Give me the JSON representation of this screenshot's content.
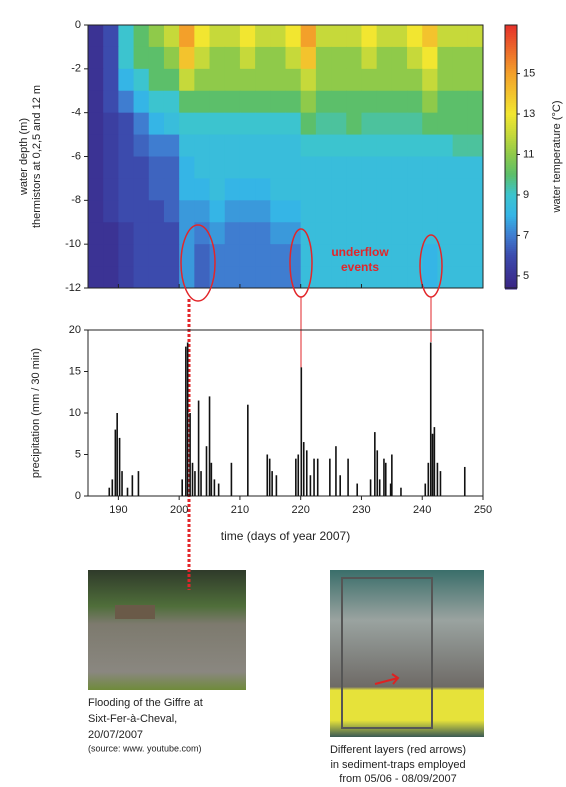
{
  "chart_data": [
    {
      "type": "heatmap",
      "ylabel": [
        "water depth (m)",
        "thermistors at 0,2,5 and 12 m"
      ],
      "colorbar_label": "water temperature (°C)",
      "annotation": [
        "underflow",
        "events"
      ],
      "x": [
        186.25,
        188.75,
        191.25,
        193.75,
        196.25,
        198.75,
        201.25,
        203.75,
        206.25,
        208.75,
        211.25,
        213.75,
        216.25,
        218.75,
        221.25,
        223.75,
        226.25,
        228.75,
        231.25,
        233.75,
        236.25,
        238.75,
        241.25,
        243.75,
        246.25,
        248.75
      ],
      "y": [
        -0.5,
        -1.5,
        -2.5,
        -3.5,
        -4.5,
        -5.5,
        -6.5,
        -7.5,
        -8.5,
        -9.5,
        -10.5,
        -11.5
      ],
      "values": [
        [
          5,
          6,
          9,
          10,
          11,
          12,
          15,
          13,
          12,
          12,
          13,
          12,
          12,
          13,
          15,
          12,
          12,
          12,
          13,
          12,
          12,
          13,
          14,
          12,
          12,
          12
        ],
        [
          5,
          6,
          9,
          10,
          10,
          11,
          14,
          12,
          11,
          11,
          12,
          11,
          11,
          12,
          14,
          11,
          11,
          11,
          12,
          11,
          11,
          12,
          13,
          11,
          11,
          11
        ],
        [
          5,
          6,
          8,
          9,
          10,
          10,
          12,
          11,
          11,
          11,
          11,
          11,
          11,
          11,
          12,
          11,
          11,
          11,
          11,
          11,
          11,
          11,
          12,
          11,
          11,
          11
        ],
        [
          5,
          6,
          7,
          8,
          9,
          9,
          10,
          10,
          10,
          10,
          10,
          10,
          10,
          10,
          11,
          10,
          10,
          10,
          10,
          10,
          10,
          10,
          11,
          10,
          10,
          10
        ],
        [
          5,
          5.5,
          6,
          7,
          8,
          8.5,
          9,
          9,
          9,
          9,
          9,
          9,
          9,
          9,
          10,
          9.5,
          9.5,
          10,
          9.5,
          9.5,
          9.5,
          9.5,
          10,
          10,
          10,
          10
        ],
        [
          5,
          5.5,
          6,
          6.5,
          7,
          7,
          8.5,
          8.5,
          8.5,
          8.5,
          8.5,
          8.5,
          8.5,
          8.5,
          9,
          9,
          9,
          9,
          9,
          9,
          9,
          9,
          9,
          9,
          9.5,
          9.5
        ],
        [
          5,
          5.5,
          6,
          6,
          6.5,
          6.5,
          8,
          8.5,
          8.5,
          8.5,
          8.5,
          8.5,
          8.5,
          8.5,
          8.5,
          8.5,
          8.5,
          8.5,
          8.5,
          8.5,
          8.5,
          8.5,
          8.5,
          8.5,
          8.5,
          8.5
        ],
        [
          5,
          5.5,
          6,
          6,
          6.5,
          6.5,
          8,
          8,
          8.5,
          8,
          8,
          8,
          8.5,
          8.5,
          8.5,
          8.5,
          8.5,
          8.5,
          8.5,
          8.5,
          8.5,
          8.5,
          8.5,
          8.5,
          8.5,
          8.5
        ],
        [
          5,
          5.5,
          6,
          6,
          6,
          6.5,
          7.5,
          7.5,
          8,
          7.5,
          7.5,
          7.5,
          8,
          8,
          8.5,
          8.5,
          8.5,
          8.5,
          8.5,
          8.5,
          8.5,
          8.5,
          8.5,
          8.5,
          8.5,
          8.5
        ],
        [
          5,
          5,
          5.5,
          6,
          6,
          6,
          7.5,
          7,
          7.5,
          7,
          7,
          7,
          7.5,
          7.5,
          8.5,
          8.5,
          8.5,
          8.5,
          8.5,
          8.5,
          8.5,
          8.5,
          8.5,
          8.5,
          8.5,
          8.5
        ],
        [
          5,
          5,
          5.5,
          6,
          6,
          6,
          7.5,
          6.5,
          7,
          7,
          7,
          7,
          7,
          7,
          8.5,
          8.5,
          8.5,
          8.5,
          8.5,
          8.5,
          8.5,
          8.5,
          8,
          8.5,
          8.5,
          8.5
        ],
        [
          5,
          5,
          5.5,
          6,
          6,
          6,
          7.5,
          6.5,
          7,
          7,
          7,
          7,
          7,
          7,
          8.5,
          8.5,
          8.5,
          8.5,
          8.5,
          8.5,
          8.5,
          8.5,
          8,
          8.5,
          8.5,
          8.5
        ]
      ],
      "xlim": [
        185,
        250
      ],
      "ylim": [
        -12,
        0
      ],
      "yticks": [
        0,
        -2,
        -4,
        -6,
        -8,
        -10,
        -12
      ],
      "clim": [
        4.4,
        17.4
      ],
      "cticks": [
        5,
        7,
        9,
        11,
        13,
        15
      ],
      "colorscale": [
        [
          4.4,
          "#3a2585"
        ],
        [
          6,
          "#3c4bad"
        ],
        [
          7,
          "#3f7dd0"
        ],
        [
          8,
          "#35b5e6"
        ],
        [
          9,
          "#3cc4cf"
        ],
        [
          10,
          "#5cbf6a"
        ],
        [
          11,
          "#8fca4a"
        ],
        [
          12,
          "#c6d93a"
        ],
        [
          13,
          "#f2e630"
        ],
        [
          15,
          "#f3a02a"
        ],
        [
          17.4,
          "#e5302a"
        ]
      ]
    },
    {
      "type": "bar",
      "ylabel": "precipitation (mm / 30 min)",
      "xlabel": "time (days of year 2007)",
      "x": [
        188.5,
        189,
        189.5,
        189.8,
        190.2,
        190.6,
        191.5,
        192.3,
        193.3,
        200.5,
        201.1,
        201.4,
        201.8,
        202.2,
        202.6,
        203.2,
        203.6,
        204.5,
        205,
        205.3,
        205.8,
        206.5,
        208.6,
        211.3,
        214.5,
        214.9,
        215.3,
        216,
        219.2,
        219.6,
        220.1,
        220.5,
        221,
        221.6,
        222.2,
        222.8,
        224.8,
        225.8,
        226.5,
        227.8,
        229.3,
        231.5,
        232.2,
        232.6,
        233,
        233.7,
        234,
        234.8,
        235,
        236.5,
        240.5,
        241,
        241.4,
        241.7,
        242,
        242.5,
        243,
        247
      ],
      "values": [
        1,
        2,
        8,
        10,
        7,
        3,
        1,
        2.5,
        3,
        2,
        18,
        18.5,
        10,
        4,
        3,
        11.5,
        3,
        6,
        12,
        4,
        2,
        1.5,
        4,
        11,
        5,
        4.5,
        3,
        2.5,
        4.5,
        5,
        15.5,
        6.5,
        5.5,
        2.5,
        4.5,
        4.5,
        4.5,
        6,
        2.5,
        4.5,
        1.5,
        2,
        7.7,
        5.5,
        2,
        4.5,
        4,
        1.5,
        5,
        1,
        1.5,
        4,
        18.5,
        7.5,
        8.3,
        4,
        3,
        3.5
      ],
      "color": "#111111",
      "xlim": [
        185,
        250
      ],
      "xticks": [
        190,
        200,
        210,
        220,
        230,
        240,
        250
      ],
      "ylim": [
        0,
        20
      ],
      "yticks": [
        0,
        5,
        10,
        15,
        20
      ]
    }
  ],
  "photos": [
    {
      "caption": [
        "Flooding of the Giffre at",
        "Sixt-Fer-à-Cheval,",
        "20/07/2007"
      ],
      "source": "(source: www. youtube.com)"
    },
    {
      "caption": [
        "Different layers (red arrows)",
        "in sediment-traps employed",
        "from 05/06 - 08/09/2007"
      ]
    }
  ]
}
